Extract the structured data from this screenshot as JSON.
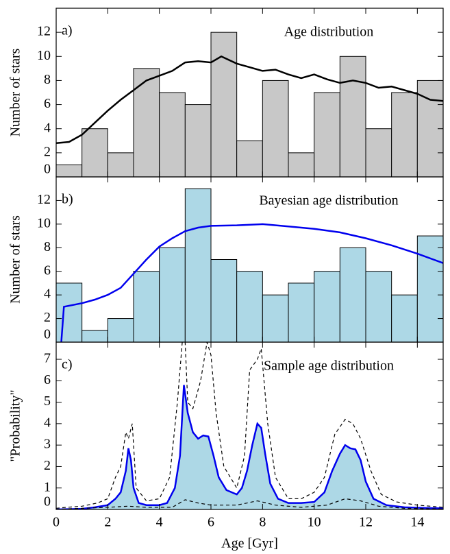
{
  "chart_data": [
    {
      "type": "histogram",
      "label": "a)",
      "title": "Age distribution",
      "ylabel": "Number of stars",
      "bins": [
        0,
        1,
        2,
        3,
        4,
        5,
        6,
        7,
        8,
        9,
        10,
        11,
        12,
        13,
        14,
        15
      ],
      "counts": [
        1,
        4,
        2,
        9,
        7,
        6,
        12,
        3,
        8,
        2,
        7,
        10,
        4,
        7,
        8
      ],
      "color": "#c8c8c8",
      "series": [
        {
          "color": "#000000",
          "style": "solid",
          "x": [
            0,
            0.5,
            1,
            1.5,
            2,
            2.5,
            3,
            3.5,
            4,
            4.5,
            5,
            5.5,
            6,
            6.4,
            7,
            7.5,
            8,
            8.5,
            9,
            9.5,
            10,
            10.5,
            11,
            11.5,
            12,
            12.5,
            13,
            13.5,
            14,
            14.5,
            15
          ],
          "values": [
            2.8,
            2.9,
            3.5,
            4.5,
            5.5,
            6.4,
            7.2,
            8,
            8.4,
            8.8,
            9.5,
            9.6,
            9.5,
            10,
            9.4,
            9.1,
            8.8,
            8.9,
            8.5,
            8.2,
            8.5,
            8.1,
            7.8,
            8,
            7.8,
            7.4,
            7.5,
            7.2,
            6.9,
            6.4,
            6.3
          ]
        }
      ],
      "xlim": [
        0,
        15
      ],
      "ylim": [
        0,
        14
      ],
      "yticks": [
        0,
        2,
        4,
        6,
        8,
        10,
        12
      ]
    },
    {
      "type": "histogram",
      "label": "b)",
      "title": "Bayesian age distribution",
      "ylabel": "Number of stars",
      "bins": [
        0,
        1,
        2,
        3,
        4,
        5,
        6,
        7,
        8,
        9,
        10,
        11,
        12,
        13,
        14,
        15
      ],
      "counts": [
        5,
        1,
        2,
        6,
        8,
        13,
        7,
        6,
        4,
        5,
        6,
        8,
        6,
        4,
        9
      ],
      "color": "#add8e6",
      "series": [
        {
          "color": "#0000ee",
          "style": "solid",
          "x": [
            0.2,
            0.3,
            1,
            1.5,
            2,
            2.5,
            3,
            3.5,
            4,
            4.5,
            5,
            5.5,
            6,
            7,
            8,
            9,
            10,
            11,
            12,
            13,
            14,
            15
          ],
          "values": [
            0,
            3,
            3.3,
            3.6,
            4,
            4.6,
            5.8,
            7,
            8.1,
            8.8,
            9.4,
            9.7,
            9.85,
            9.9,
            10,
            9.8,
            9.6,
            9.3,
            8.8,
            8.2,
            7.5,
            6.7
          ]
        }
      ],
      "xlim": [
        0,
        15
      ],
      "ylim": [
        0,
        14
      ],
      "yticks": [
        0,
        2,
        4,
        6,
        8,
        10,
        12
      ]
    },
    {
      "type": "line",
      "label": "c)",
      "title": "Sample age distribution",
      "ylabel": "\"Probability\"",
      "xlabel": "Age [Gyr]",
      "series": [
        {
          "color": "#0000ee",
          "style": "solid",
          "fill": "#add8e6",
          "x": [
            0,
            1,
            1.5,
            2,
            2.3,
            2.5,
            2.7,
            2.8,
            2.9,
            3,
            3.2,
            3.5,
            4,
            4.3,
            4.6,
            4.8,
            4.95,
            5.1,
            5.3,
            5.5,
            5.7,
            5.9,
            6.1,
            6.3,
            6.6,
            7,
            7.2,
            7.4,
            7.6,
            7.8,
            7.95,
            8.1,
            8.3,
            8.6,
            9,
            9.5,
            10,
            10.4,
            10.7,
            11,
            11.2,
            11.4,
            11.6,
            11.8,
            12,
            12.3,
            12.8,
            13.5,
            14.5,
            15
          ],
          "values": [
            0,
            0.03,
            0.1,
            0.2,
            0.5,
            0.8,
            1.8,
            2.85,
            2.3,
            1.0,
            0.3,
            0.2,
            0.2,
            0.3,
            1.0,
            2.5,
            5.8,
            4.5,
            3.6,
            3.3,
            3.45,
            3.4,
            2.5,
            1.5,
            0.9,
            0.7,
            1.0,
            1.8,
            3.0,
            4.0,
            3.8,
            2.6,
            1.2,
            0.5,
            0.3,
            0.3,
            0.35,
            0.8,
            1.8,
            2.6,
            3.0,
            2.85,
            2.8,
            2.3,
            1.3,
            0.5,
            0.2,
            0.1,
            0.06,
            0.05
          ]
        },
        {
          "color": "#000000",
          "style": "dashed",
          "x": [
            0,
            0.4,
            1,
            1.6,
            2,
            2.3,
            2.5,
            2.7,
            2.8,
            2.95,
            3.1,
            3.5,
            4,
            4.4,
            4.7,
            4.9,
            5.0,
            5.1,
            5.3,
            5.6,
            5.85,
            6.0,
            6.2,
            6.5,
            7,
            7.3,
            7.5,
            7.8,
            7.95,
            8.2,
            8.5,
            9,
            9.5,
            10,
            10.4,
            10.8,
            11.2,
            11.5,
            11.8,
            12.2,
            12.6,
            13.2,
            14,
            15
          ],
          "values": [
            0.05,
            0.1,
            0.15,
            0.3,
            0.5,
            1.5,
            2,
            3.6,
            3.3,
            4.0,
            1.0,
            0.4,
            0.5,
            1.5,
            5.0,
            8.0,
            7.8,
            5.0,
            4.7,
            6.0,
            7.8,
            7.2,
            4.5,
            2.0,
            1.0,
            2.5,
            6.5,
            7.0,
            7.5,
            4.0,
            1.5,
            0.5,
            0.5,
            0.8,
            1.5,
            3.5,
            4.2,
            4.0,
            3.3,
            1.8,
            0.7,
            0.35,
            0.2,
            0.1
          ]
        },
        {
          "color": "#000000",
          "style": "dashed",
          "x": [
            0,
            1,
            2,
            2.8,
            3.5,
            4.5,
            5,
            5.5,
            6,
            7,
            7.8,
            8.5,
            9.5,
            10.5,
            11.2,
            11.8,
            12.5,
            13.5,
            15
          ],
          "values": [
            0,
            0.05,
            0.1,
            0.15,
            0.1,
            0.1,
            0.45,
            0.3,
            0.2,
            0.2,
            0.4,
            0.2,
            0.1,
            0.2,
            0.5,
            0.4,
            0.15,
            0.05,
            0.02
          ]
        }
      ],
      "xlim": [
        0,
        15
      ],
      "ylim": [
        0,
        7.8
      ],
      "yticks": [
        0,
        1,
        2,
        3,
        4,
        5,
        6,
        7
      ],
      "xticks": [
        0,
        2,
        4,
        6,
        8,
        10,
        12,
        14
      ]
    }
  ]
}
